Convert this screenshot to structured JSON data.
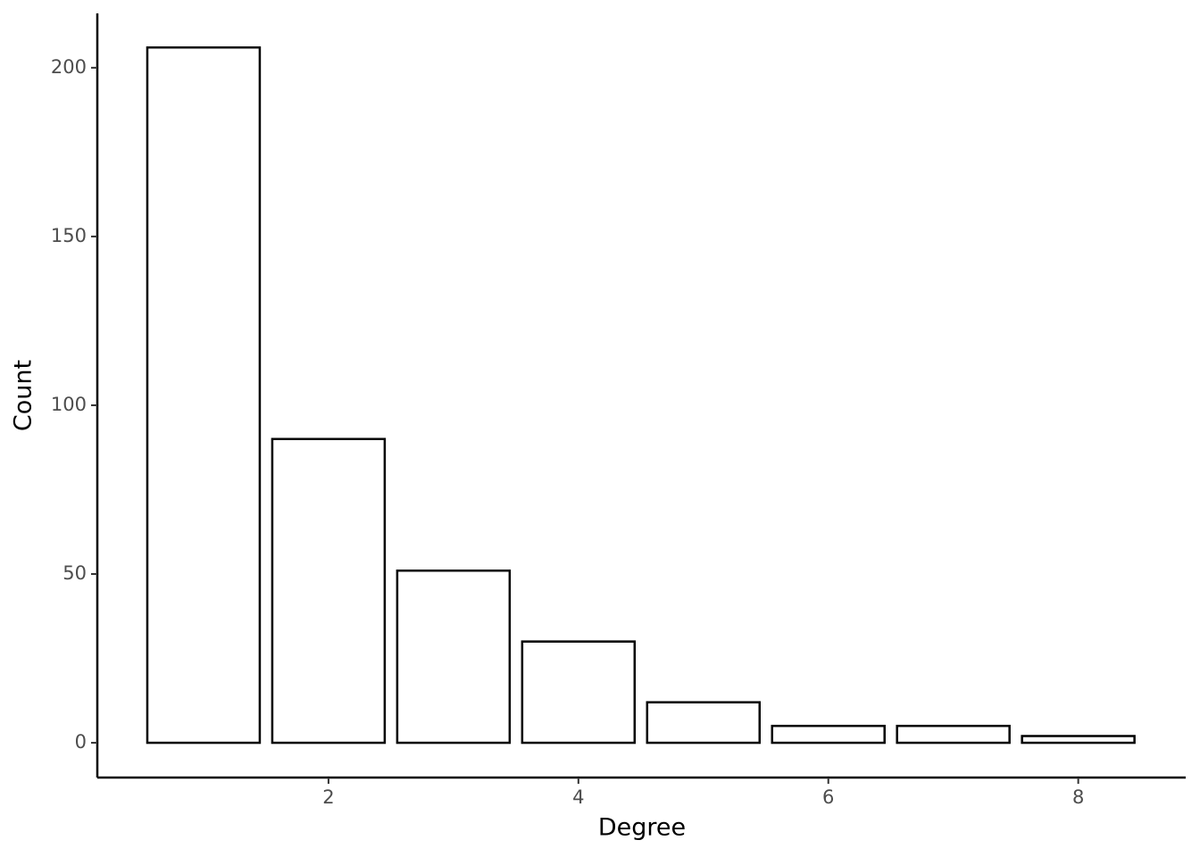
{
  "chart_data": {
    "type": "bar",
    "x_label": "Degree",
    "y_label": "Count",
    "x": [
      1,
      2,
      3,
      4,
      5,
      6,
      7,
      8
    ],
    "values": [
      206,
      90,
      51,
      30,
      12,
      5,
      5,
      2
    ],
    "color": "#ffffff",
    "edge_color": "#000000",
    "xlim": [
      0.15,
      8.86
    ],
    "xticks": [
      2,
      4,
      6,
      8
    ],
    "ylim": [
      -10.3,
      216.1
    ],
    "yticks": [
      0,
      50,
      100,
      150,
      200
    ],
    "grid": false
  }
}
